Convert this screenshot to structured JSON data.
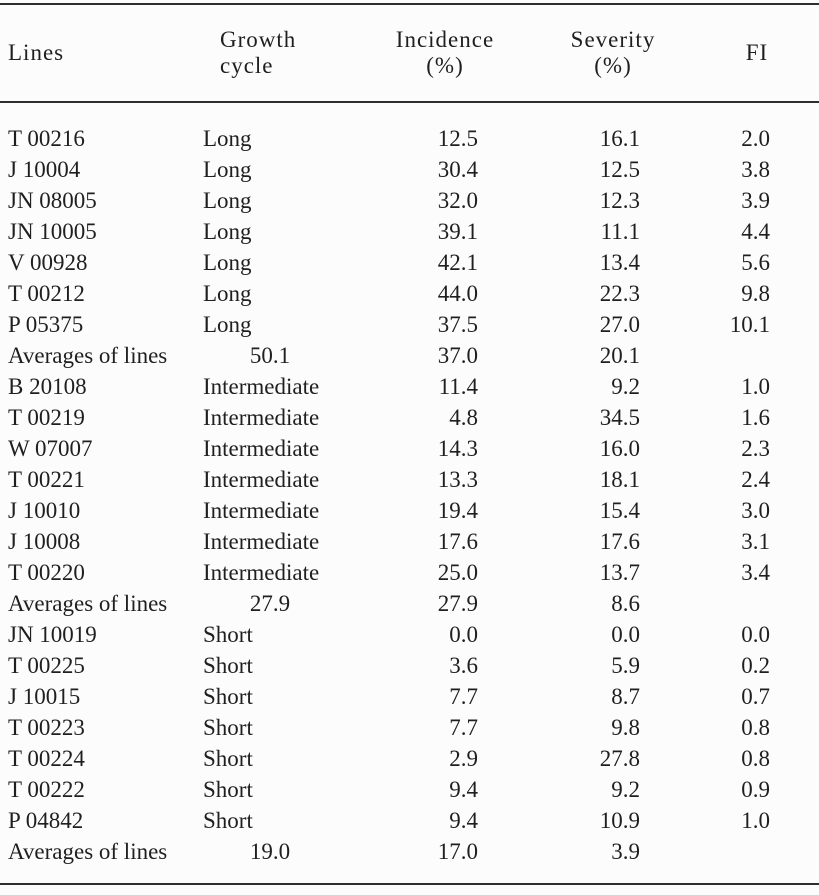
{
  "page": {
    "background_color": "#fcfcfc",
    "text_color": "#1f1f1f",
    "rule_color": "#2e2e2e"
  },
  "table": {
    "headers": [
      {
        "line1": "Lines",
        "line2": ""
      },
      {
        "line1": "Growth cycle",
        "line2": ""
      },
      {
        "line1": "Incidence",
        "line2": "(%)"
      },
      {
        "line1": "Severity",
        "line2": "(%)"
      },
      {
        "line1": "FI",
        "line2": ""
      }
    ],
    "rows": [
      {
        "type": "data",
        "cells": [
          "T 00216",
          "Long",
          "12.5",
          "16.1",
          "2.0"
        ]
      },
      {
        "type": "data",
        "cells": [
          "J 10004",
          "Long",
          "30.4",
          "12.5",
          "3.8"
        ]
      },
      {
        "type": "data",
        "cells": [
          "JN 08005",
          "Long",
          "32.0",
          "12.3",
          "3.9"
        ]
      },
      {
        "type": "data",
        "cells": [
          "JN 10005",
          "Long",
          "39.1",
          "11.1",
          "4.4"
        ]
      },
      {
        "type": "data",
        "cells": [
          "V 00928",
          "Long",
          "42.1",
          "13.4",
          "5.6"
        ]
      },
      {
        "type": "data",
        "cells": [
          "T 00212",
          "Long",
          "44.0",
          "22.3",
          "9.8"
        ]
      },
      {
        "type": "data",
        "cells": [
          "P 05375",
          "Long",
          "37.5",
          "27.0",
          "10.1"
        ]
      },
      {
        "type": "average",
        "cells": [
          "Averages of lines",
          "50.1",
          "37.0",
          "20.1",
          ""
        ]
      },
      {
        "type": "data",
        "cells": [
          "B 20108",
          "Intermediate",
          "11.4",
          "9.2",
          "1.0"
        ]
      },
      {
        "type": "data",
        "cells": [
          "T 00219",
          "Intermediate",
          "4.8",
          "34.5",
          "1.6"
        ]
      },
      {
        "type": "data",
        "cells": [
          "W 07007",
          "Intermediate",
          "14.3",
          "16.0",
          "2.3"
        ]
      },
      {
        "type": "data",
        "cells": [
          "T 00221",
          "Intermediate",
          "13.3",
          "18.1",
          "2.4"
        ]
      },
      {
        "type": "data",
        "cells": [
          "J 10010",
          "Intermediate",
          "19.4",
          "15.4",
          "3.0"
        ]
      },
      {
        "type": "data",
        "cells": [
          "J 10008",
          "Intermediate",
          "17.6",
          "17.6",
          "3.1"
        ]
      },
      {
        "type": "data",
        "cells": [
          "T 00220",
          "Intermediate",
          "25.0",
          "13.7",
          "3.4"
        ]
      },
      {
        "type": "average",
        "cells": [
          "Averages of lines",
          "27.9",
          "27.9",
          "8.6",
          ""
        ]
      },
      {
        "type": "data",
        "cells": [
          "JN 10019",
          "Short",
          "0.0",
          "0.0",
          "0.0"
        ]
      },
      {
        "type": "data",
        "cells": [
          "T 00225",
          "Short",
          "3.6",
          "5.9",
          "0.2"
        ]
      },
      {
        "type": "data",
        "cells": [
          "J 10015",
          "Short",
          "7.7",
          "8.7",
          "0.7"
        ]
      },
      {
        "type": "data",
        "cells": [
          "T 00223",
          "Short",
          "7.7",
          "9.8",
          "0.8"
        ]
      },
      {
        "type": "data",
        "cells": [
          "T 00224",
          "Short",
          "2.9",
          "27.8",
          "0.8"
        ]
      },
      {
        "type": "data",
        "cells": [
          "T 00222",
          "Short",
          "9.4",
          "9.2",
          "0.9"
        ]
      },
      {
        "type": "data",
        "cells": [
          "P 04842",
          "Short",
          "9.4",
          "10.9",
          "1.0"
        ]
      },
      {
        "type": "average",
        "cells": [
          "Averages of lines",
          "19.0",
          "17.0",
          "3.9",
          ""
        ]
      }
    ],
    "cell_names": [
      "line-cell",
      "growth-cycle-cell",
      "incidence-cell",
      "severity-cell",
      "fi-cell"
    ]
  }
}
